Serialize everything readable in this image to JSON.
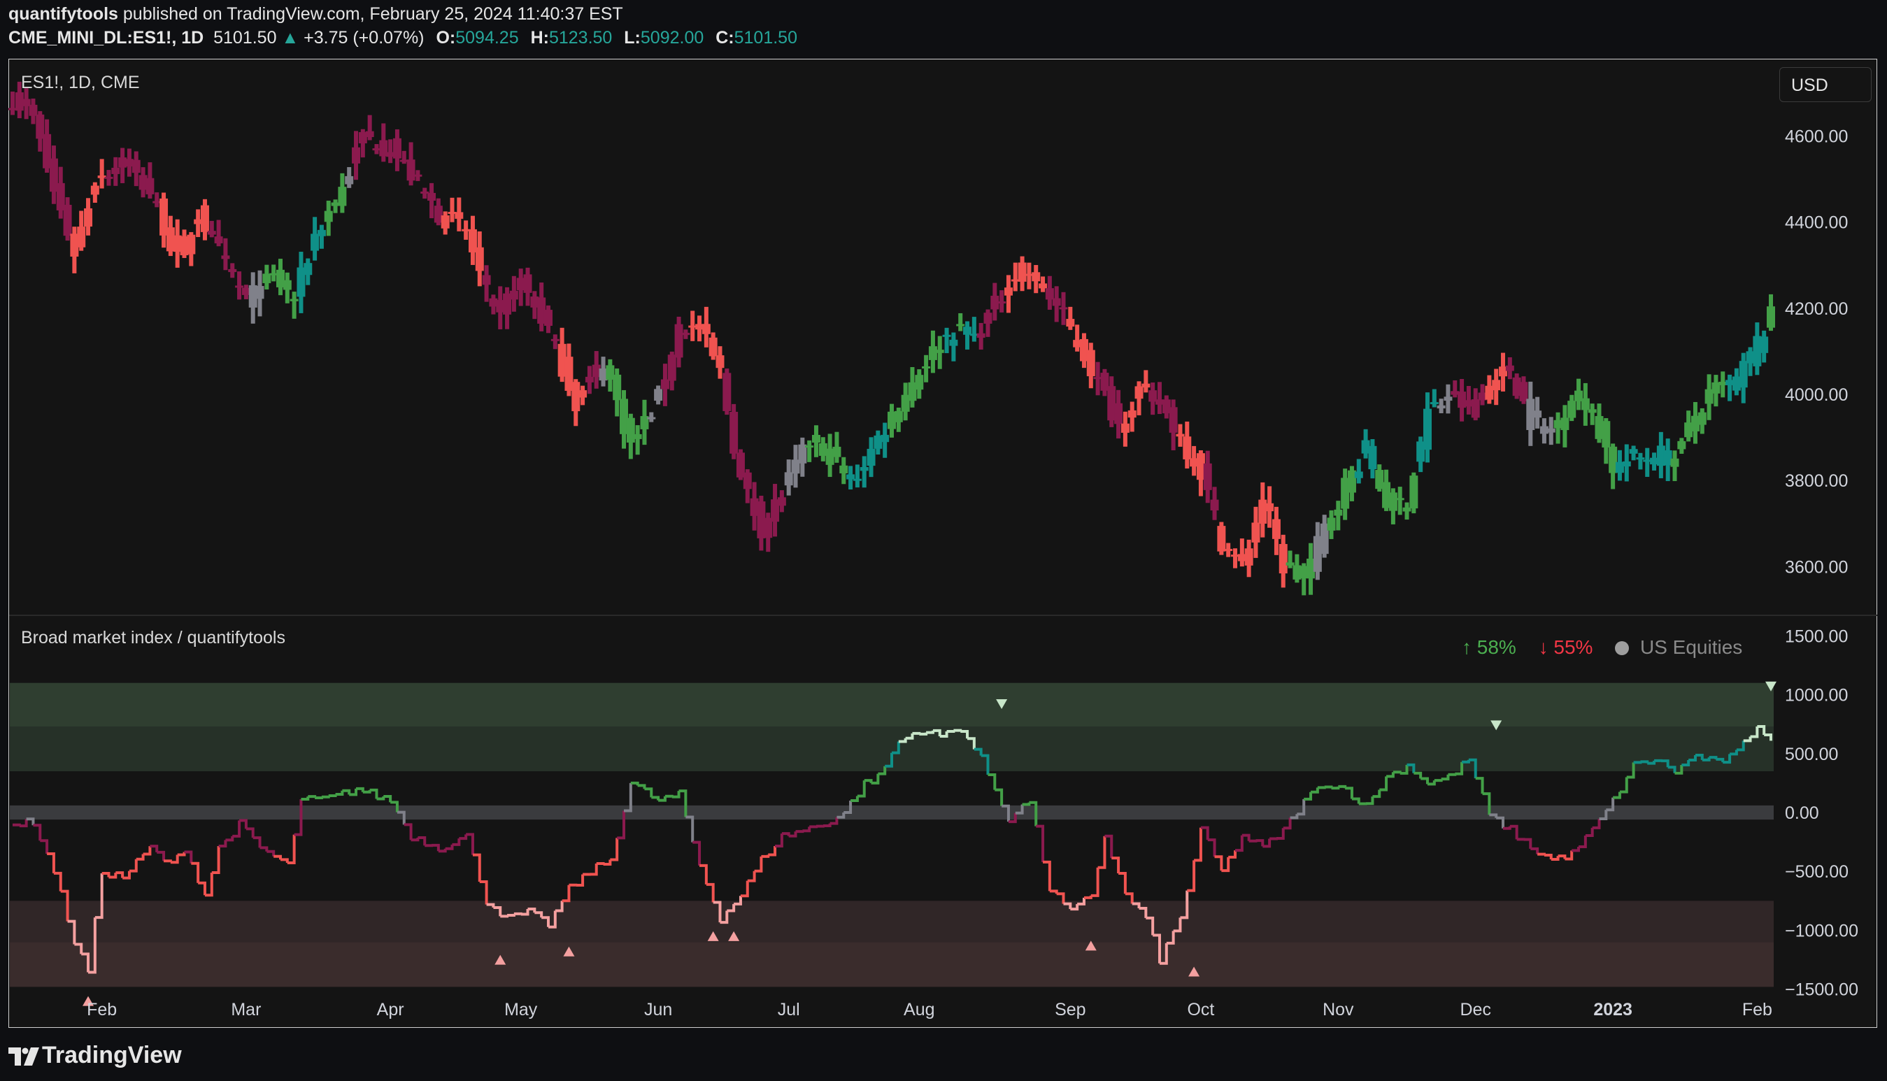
{
  "header": {
    "publisher": "quantifytools",
    "published_text": "published on TradingView.com, February 25, 2024 11:40:37 EST",
    "symbol_line": "CME_MINI_DL:ES1!, 1D",
    "last_price": "5101.50",
    "change_arrow": "▲",
    "change": "+3.75 (+0.07%)",
    "open_label": "O:",
    "open": "5094.25",
    "high_label": "H:",
    "high": "5123.50",
    "low_label": "L:",
    "low": "5092.00",
    "close_label": "C:",
    "close": "5101.50"
  },
  "main_pane": {
    "label": "ES1!, 1D, CME",
    "currency_button": "USD"
  },
  "indicator_pane": {
    "label": "Broad market index / quantifytools",
    "legend_up": "↑ 58%",
    "legend_down": "↓ 55%",
    "legend_name": "US Equities"
  },
  "branding": {
    "logo_text": "TradingView"
  },
  "colors": {
    "strong_bear": "#f05350",
    "bear": "#8b1a4e",
    "neutral": "#80818a",
    "bull": "#43a047",
    "strong_bull": "#0f9088",
    "osc_extreme_low": "#f4a0a0",
    "osc_extreme_high": "#c8e6c9",
    "band_green": "#2c3a2e",
    "band_red": "#3a2c2c",
    "zero_band": "#3a3b3e"
  },
  "chart_data": [
    {
      "type": "bar",
      "title": "ES1!, 1D, CME",
      "subtype": "ohlc",
      "y_ticks": [
        "4600.00",
        "4400.00",
        "4200.00",
        "4000.00",
        "3800.00",
        "3600.00"
      ],
      "ylim": [
        3490,
        4760
      ],
      "x_ticks": [
        "Feb",
        "Mar",
        "Apr",
        "May",
        "Jun",
        "Jul",
        "Aug",
        "Sep",
        "Oct",
        "Nov",
        "Dec",
        "2023",
        "Feb"
      ],
      "anchors_close": [
        [
          0,
          4690
        ],
        [
          3,
          4640
        ],
        [
          6,
          4470
        ],
        [
          9,
          4330
        ],
        [
          12,
          4500
        ],
        [
          16,
          4540
        ],
        [
          20,
          4470
        ],
        [
          24,
          4310
        ],
        [
          27,
          4420
        ],
        [
          30,
          4330
        ],
        [
          34,
          4220
        ],
        [
          38,
          4270
        ],
        [
          41,
          4220
        ],
        [
          44,
          4370
        ],
        [
          48,
          4480
        ],
        [
          51,
          4600
        ],
        [
          55,
          4570
        ],
        [
          58,
          4510
        ],
        [
          62,
          4420
        ],
        [
          66,
          4380
        ],
        [
          70,
          4180
        ],
        [
          74,
          4260
        ],
        [
          78,
          4150
        ],
        [
          82,
          3980
        ],
        [
          86,
          4080
        ],
        [
          90,
          3880
        ],
        [
          94,
          3990
        ],
        [
          97,
          4160
        ],
        [
          100,
          4150
        ],
        [
          103,
          4050
        ],
        [
          106,
          3800
        ],
        [
          109,
          3690
        ],
        [
          112,
          3770
        ],
        [
          116,
          3890
        ],
        [
          119,
          3860
        ],
        [
          122,
          3790
        ],
        [
          125,
          3870
        ],
        [
          129,
          3980
        ],
        [
          133,
          4080
        ],
        [
          137,
          4150
        ],
        [
          140,
          4130
        ],
        [
          144,
          4230
        ],
        [
          147,
          4300
        ],
        [
          150,
          4250
        ],
        [
          153,
          4180
        ],
        [
          157,
          4060
        ],
        [
          161,
          3930
        ],
        [
          164,
          4010
        ],
        [
          167,
          3980
        ],
        [
          170,
          3900
        ],
        [
          173,
          3820
        ],
        [
          176,
          3660
        ],
        [
          179,
          3600
        ],
        [
          182,
          3760
        ],
        [
          185,
          3600
        ],
        [
          188,
          3570
        ],
        [
          191,
          3690
        ],
        [
          194,
          3790
        ],
        [
          197,
          3870
        ],
        [
          200,
          3750
        ],
        [
          203,
          3750
        ],
        [
          206,
          3960
        ],
        [
          209,
          3990
        ],
        [
          212,
          3970
        ],
        [
          215,
          4020
        ],
        [
          218,
          4060
        ],
        [
          221,
          3940
        ],
        [
          224,
          3910
        ],
        [
          227,
          4000
        ],
        [
          230,
          3960
        ],
        [
          233,
          3830
        ],
        [
          236,
          3850
        ],
        [
          239,
          3860
        ],
        [
          242,
          3850
        ],
        [
          245,
          3950
        ],
        [
          248,
          4010
        ],
        [
          251,
          4030
        ],
        [
          254,
          4120
        ],
        [
          256,
          4180
        ]
      ],
      "anchors_state": [
        [
          0,
          1
        ],
        [
          9,
          0
        ],
        [
          14,
          1
        ],
        [
          22,
          0
        ],
        [
          29,
          1
        ],
        [
          35,
          2
        ],
        [
          37,
          3
        ],
        [
          42,
          4
        ],
        [
          46,
          3
        ],
        [
          49,
          2
        ],
        [
          50,
          1
        ],
        [
          63,
          0
        ],
        [
          69,
          1
        ],
        [
          80,
          0
        ],
        [
          84,
          1
        ],
        [
          86,
          2
        ],
        [
          87,
          3
        ],
        [
          93,
          2
        ],
        [
          95,
          1
        ],
        [
          99,
          0
        ],
        [
          104,
          1
        ],
        [
          113,
          2
        ],
        [
          116,
          3
        ],
        [
          122,
          4
        ],
        [
          128,
          3
        ],
        [
          136,
          4
        ],
        [
          138,
          3
        ],
        [
          139,
          4
        ],
        [
          141,
          1
        ],
        [
          145,
          0
        ],
        [
          151,
          1
        ],
        [
          154,
          0
        ],
        [
          158,
          1
        ],
        [
          162,
          0
        ],
        [
          166,
          1
        ],
        [
          170,
          0
        ],
        [
          174,
          1
        ],
        [
          176,
          0
        ],
        [
          186,
          3
        ],
        [
          190,
          2
        ],
        [
          192,
          3
        ],
        [
          196,
          4
        ],
        [
          199,
          3
        ],
        [
          205,
          4
        ],
        [
          208,
          2
        ],
        [
          210,
          1
        ],
        [
          215,
          0
        ],
        [
          218,
          1
        ],
        [
          221,
          2
        ],
        [
          225,
          3
        ],
        [
          234,
          4
        ],
        [
          242,
          3
        ],
        [
          250,
          4
        ],
        [
          256,
          3
        ]
      ],
      "state_legend": [
        "strong bear",
        "bear",
        "neutral",
        "bull",
        "strong bull"
      ]
    },
    {
      "type": "line",
      "title": "Broad market index / quantifytools",
      "series_name": "US Equities",
      "y_ticks": [
        "1500.00",
        "1000.00",
        "500.00",
        "0.00",
        "−500.00",
        "−1000.00",
        "−1500.00"
      ],
      "ylim": [
        -1650,
        1650
      ],
      "bands": [
        {
          "from": 1100,
          "to": 730,
          "color": "#2f3e30"
        },
        {
          "from": 730,
          "to": 350,
          "color": "#263128"
        },
        {
          "from": 60,
          "to": -60,
          "color": "#3a3b3e"
        },
        {
          "from": -750,
          "to": -1100,
          "color": "#302627"
        },
        {
          "from": -1100,
          "to": -1480,
          "color": "#3a2c2c"
        }
      ],
      "anchors": [
        [
          0,
          -100
        ],
        [
          3,
          -80
        ],
        [
          6,
          -500
        ],
        [
          9,
          -1100
        ],
        [
          11,
          -1350
        ],
        [
          13,
          -500
        ],
        [
          16,
          -550
        ],
        [
          20,
          -300
        ],
        [
          23,
          -450
        ],
        [
          25,
          -300
        ],
        [
          28,
          -700
        ],
        [
          30,
          -300
        ],
        [
          33,
          -100
        ],
        [
          36,
          -300
        ],
        [
          40,
          -450
        ],
        [
          42,
          100
        ],
        [
          46,
          120
        ],
        [
          50,
          200
        ],
        [
          55,
          100
        ],
        [
          58,
          -200
        ],
        [
          62,
          -300
        ],
        [
          66,
          -200
        ],
        [
          69,
          -750
        ],
        [
          72,
          -900
        ],
        [
          75,
          -850
        ],
        [
          78,
          -950
        ],
        [
          81,
          -650
        ],
        [
          84,
          -500
        ],
        [
          87,
          -400
        ],
        [
          90,
          250
        ],
        [
          94,
          100
        ],
        [
          97,
          150
        ],
        [
          100,
          -450
        ],
        [
          103,
          -900
        ],
        [
          106,
          -700
        ],
        [
          109,
          -400
        ],
        [
          112,
          -200
        ],
        [
          115,
          -150
        ],
        [
          118,
          -100
        ],
        [
          121,
          0
        ],
        [
          124,
          250
        ],
        [
          126,
          300
        ],
        [
          129,
          600
        ],
        [
          132,
          700
        ],
        [
          135,
          650
        ],
        [
          138,
          720
        ],
        [
          141,
          450
        ],
        [
          145,
          -50
        ],
        [
          148,
          100
        ],
        [
          151,
          -650
        ],
        [
          154,
          -850
        ],
        [
          157,
          -700
        ],
        [
          159,
          -200
        ],
        [
          162,
          -700
        ],
        [
          165,
          -900
        ],
        [
          167,
          -1250
        ],
        [
          170,
          -900
        ],
        [
          173,
          -150
        ],
        [
          176,
          -500
        ],
        [
          179,
          -200
        ],
        [
          182,
          -300
        ],
        [
          185,
          -150
        ],
        [
          188,
          100
        ],
        [
          191,
          250
        ],
        [
          194,
          200
        ],
        [
          197,
          50
        ],
        [
          200,
          300
        ],
        [
          203,
          400
        ],
        [
          206,
          250
        ],
        [
          209,
          300
        ],
        [
          212,
          450
        ],
        [
          215,
          -30
        ],
        [
          218,
          -150
        ],
        [
          221,
          -300
        ],
        [
          224,
          -400
        ],
        [
          227,
          -350
        ],
        [
          230,
          -150
        ],
        [
          233,
          100
        ],
        [
          236,
          400
        ],
        [
          239,
          450
        ],
        [
          242,
          350
        ],
        [
          245,
          480
        ],
        [
          248,
          420
        ],
        [
          251,
          500
        ],
        [
          254,
          750
        ],
        [
          256,
          620
        ]
      ],
      "markers": [
        {
          "type": "up",
          "i": 11,
          "y": -1600
        },
        {
          "type": "up",
          "i": 71,
          "y": -1250
        },
        {
          "type": "up",
          "i": 81,
          "y": -1180
        },
        {
          "type": "up",
          "i": 102,
          "y": -1050
        },
        {
          "type": "up",
          "i": 105,
          "y": -1050
        },
        {
          "type": "up",
          "i": 157,
          "y": -1130
        },
        {
          "type": "up",
          "i": 172,
          "y": -1350
        },
        {
          "type": "down",
          "i": 144,
          "y": 920
        },
        {
          "type": "down",
          "i": 216,
          "y": 740
        },
        {
          "type": "down",
          "i": 256,
          "y": 1070
        }
      ]
    }
  ]
}
